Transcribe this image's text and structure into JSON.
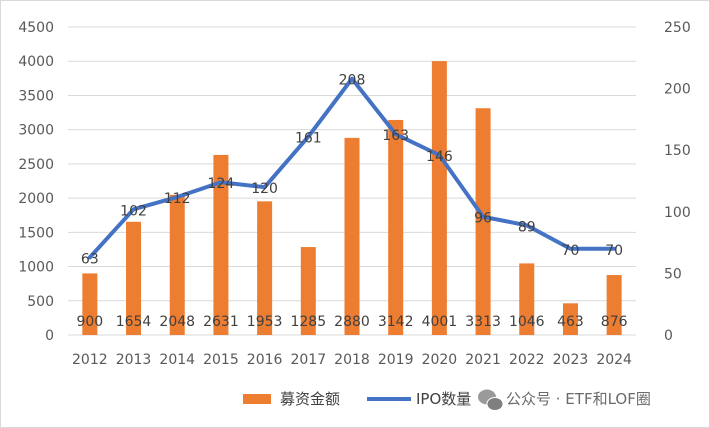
{
  "chart_data": {
    "type": "bar+line",
    "categories": [
      "2012",
      "2013",
      "2014",
      "2015",
      "2016",
      "2017",
      "2018",
      "2019",
      "2020",
      "2021",
      "2022",
      "2023",
      "2024"
    ],
    "series": [
      {
        "name": "募资金额",
        "type": "bar",
        "axis": "left",
        "color": "#ed7d31",
        "values": [
          900,
          1654,
          2048,
          2631,
          1953,
          1285,
          2880,
          3142,
          4001,
          3313,
          1046,
          463,
          876
        ]
      },
      {
        "name": "IPO数量",
        "type": "line",
        "axis": "right",
        "color": "#4472c4",
        "values": [
          63,
          102,
          112,
          124,
          120,
          161,
          208,
          163,
          146,
          96,
          89,
          70,
          70
        ]
      }
    ],
    "ylim_left": [
      0,
      4500
    ],
    "yticks_left": [
      "0",
      "500",
      "1000",
      "1500",
      "2000",
      "2500",
      "3000",
      "3500",
      "4000",
      "4500"
    ],
    "ylim_right": [
      0,
      250
    ],
    "yticks_right": [
      "0",
      "50",
      "100",
      "150",
      "200",
      "250"
    ],
    "legend_position": "bottom",
    "grid": true
  },
  "watermark": {
    "icon": "wechat-icon",
    "text": "公众号 · ETF和LOF圈"
  }
}
